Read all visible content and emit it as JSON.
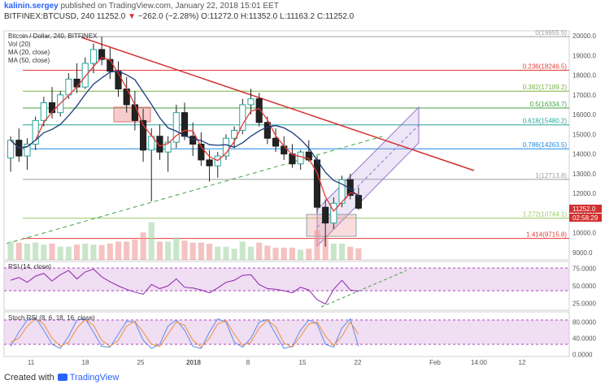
{
  "header": {
    "author": "kalinin.sergey",
    "published_text": "published on TradingView.com, January 22, 2018 15:01 EET",
    "symbol_line": "BITFINEX:BTCUSD, 240",
    "last_value": "11252.0",
    "change_arrow": "▼",
    "change_text": "−262.0 (−2.28%)",
    "o_label": "O:",
    "o_value": "11272.0",
    "h_label": "H:",
    "h_value": "11352.0",
    "l_label": "L:",
    "l_value": "11163.2",
    "c_label": "C:",
    "c_value": "11252.0"
  },
  "chart_data": [
    {
      "type": "candlestick",
      "title": "Bitcoin / Dollar, 240, BITFINEX",
      "indicators": [
        "Vol (20)",
        "MA (20, close)",
        "MA (50, close)"
      ],
      "price_axis": {
        "ticks": [
          "20000.0",
          "19000.0",
          "18000.0",
          "17000.0",
          "16000.0",
          "15000.0",
          "14000.0",
          "13000.0",
          "12000.0",
          "11000.0",
          "10000.0",
          "9000.0"
        ],
        "range": [
          9000,
          20000
        ]
      },
      "time_axis": {
        "ticks": [
          "11",
          "18",
          "25",
          "2018",
          "8",
          "15",
          "22",
          "Feb",
          "14:00",
          "12"
        ]
      },
      "last_price_label": "11252.0",
      "countdown_label": "02:58:29",
      "fib_levels": [
        {
          "label": "0(19955.5)",
          "value": 19955.5,
          "color": "#9e9e9e"
        },
        {
          "label": "0.236(18246.5)",
          "value": 18246.5,
          "color": "#e53935"
        },
        {
          "label": "0.382(17189.2)",
          "value": 17189.2,
          "color": "#7cb342"
        },
        {
          "label": "0.5(16334.7)",
          "value": 16334.7,
          "color": "#43a047"
        },
        {
          "label": "0.618(15480.2)",
          "value": 15480.2,
          "color": "#26a69a"
        },
        {
          "label": "0.786(14263.5)",
          "value": 14263.5,
          "color": "#1e88e5"
        },
        {
          "label": "1(12713.8)",
          "value": 12713.8,
          "color": "#9e9e9e"
        },
        {
          "label": "1.272(10744.1)",
          "value": 10744.1,
          "color": "#9ccc65"
        },
        {
          "label": "1.414(9715.8)",
          "value": 9715.8,
          "color": "#e53935"
        }
      ],
      "candles": [
        [
          13800,
          14900,
          13100,
          14700
        ],
        [
          14700,
          15300,
          13600,
          13900
        ],
        [
          13900,
          14800,
          13200,
          14500
        ],
        [
          14500,
          15900,
          14200,
          15700
        ],
        [
          15700,
          16900,
          15400,
          16600
        ],
        [
          16600,
          17400,
          15800,
          16100
        ],
        [
          16100,
          17200,
          15900,
          17000
        ],
        [
          17000,
          18100,
          16800,
          17800
        ],
        [
          17800,
          18600,
          17100,
          17400
        ],
        [
          17400,
          18900,
          17300,
          18600
        ],
        [
          18600,
          19600,
          18100,
          19300
        ],
        [
          19300,
          19956,
          18500,
          18800
        ],
        [
          18800,
          19400,
          17800,
          18200
        ],
        [
          18200,
          18700,
          16900,
          17300
        ],
        [
          17300,
          17900,
          16100,
          16500
        ],
        [
          16500,
          17200,
          15200,
          15700
        ],
        [
          15700,
          16300,
          13600,
          14200
        ],
        [
          14200,
          15300,
          11600,
          14900
        ],
        [
          14900,
          15500,
          13700,
          14100
        ],
        [
          14100,
          14900,
          13100,
          14600
        ],
        [
          14600,
          16500,
          14300,
          16100
        ],
        [
          16100,
          16600,
          14700,
          14900
        ],
        [
          14900,
          15600,
          13900,
          14500
        ],
        [
          14500,
          15100,
          13400,
          13700
        ],
        [
          13700,
          14200,
          12600,
          13400
        ],
        [
          13400,
          14100,
          12800,
          13900
        ],
        [
          13900,
          15000,
          13700,
          14800
        ],
        [
          14800,
          15400,
          14300,
          15200
        ],
        [
          15200,
          16800,
          15000,
          16500
        ],
        [
          16500,
          17300,
          16000,
          16800
        ],
        [
          16800,
          17100,
          15400,
          15600
        ],
        [
          15600,
          15900,
          14500,
          14800
        ],
        [
          14800,
          15300,
          14100,
          14400
        ],
        [
          14400,
          14900,
          13700,
          14000
        ],
        [
          14000,
          14500,
          13300,
          13500
        ],
        [
          13500,
          14200,
          13200,
          14100
        ],
        [
          14100,
          14700,
          13600,
          13700
        ],
        [
          13700,
          13900,
          11000,
          11300
        ],
        [
          11300,
          11700,
          9300,
          10500
        ],
        [
          10500,
          11800,
          10200,
          11500
        ],
        [
          11500,
          12900,
          11300,
          12700
        ],
        [
          12700,
          13000,
          11700,
          11900
        ],
        [
          11900,
          12300,
          11160,
          11252
        ]
      ]
    },
    {
      "type": "line",
      "title": "RSI (14, close)",
      "ticks": [
        "75.0000",
        "50.0000",
        "25.0000"
      ],
      "range": [
        15,
        85
      ],
      "values": [
        58,
        62,
        55,
        64,
        68,
        57,
        66,
        72,
        60,
        70,
        74,
        63,
        56,
        50,
        45,
        41,
        38,
        52,
        46,
        50,
        60,
        48,
        47,
        44,
        40,
        47,
        55,
        58,
        65,
        66,
        52,
        46,
        45,
        43,
        40,
        48,
        44,
        30,
        24,
        45,
        58,
        44,
        42
      ]
    },
    {
      "type": "line",
      "title": "Stoch RSI (8, 6, 18, 16, close)",
      "ticks": [
        "80.0000",
        "40.0000",
        "0.0000"
      ],
      "range": [
        -5,
        105
      ],
      "series": [
        {
          "color": "#5b8def",
          "values": [
            20,
            55,
            85,
            90,
            60,
            25,
            15,
            45,
            85,
            88,
            55,
            20,
            18,
            50,
            82,
            80,
            35,
            15,
            25,
            70,
            85,
            60,
            20,
            15,
            55,
            88,
            80,
            30,
            18,
            40,
            80,
            86,
            50,
            15,
            20,
            60,
            85,
            75,
            25,
            18,
            65,
            88,
            20
          ]
        },
        {
          "color": "#ef8e3a",
          "values": [
            30,
            40,
            70,
            88,
            75,
            40,
            20,
            30,
            65,
            86,
            72,
            35,
            20,
            35,
            70,
            82,
            55,
            25,
            20,
            50,
            80,
            72,
            35,
            18,
            40,
            75,
            84,
            50,
            22,
            30,
            65,
            85,
            68,
            28,
            18,
            45,
            75,
            80,
            45,
            22,
            45,
            80,
            50
          ]
        }
      ]
    }
  ]
}
